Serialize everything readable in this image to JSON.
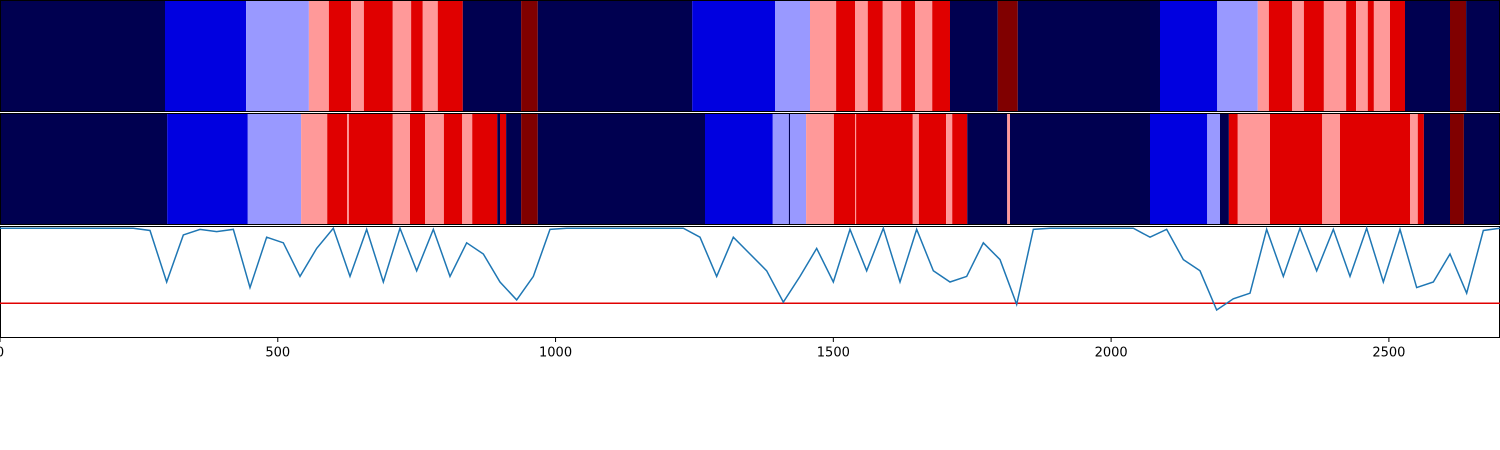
{
  "chart_data": {
    "type": "segmentation",
    "xlim": [
      0,
      2700
    ],
    "xticks": [
      0,
      500,
      1000,
      1500,
      2000,
      2500
    ],
    "bands": [
      {
        "edges": [
          0,
          297,
          443,
          556,
          592,
          632,
          655,
          707,
          740,
          761,
          788,
          833,
          938,
          968,
          1246,
          1395,
          1458,
          1505,
          1539,
          1562,
          1589,
          1622,
          1647,
          1678,
          1710,
          1796,
          1832,
          2088,
          2191,
          2264,
          2284,
          2326,
          2347,
          2383,
          2423,
          2441,
          2462,
          2473,
          2502,
          2529,
          2610,
          2639,
          2700
        ],
        "colors": [
          "#000050",
          "#0000e0",
          "#9999ff",
          "#ff9999",
          "#e00000",
          "#ff9999",
          "#e00000",
          "#ff9999",
          "#e00000",
          "#ff9999",
          "#e00000",
          "#000050",
          "#800000",
          "#000050",
          "#0000e0",
          "#9999ff",
          "#ff9999",
          "#e00000",
          "#ff9999",
          "#e00000",
          "#ff9999",
          "#e00000",
          "#ff9999",
          "#e00000",
          "#000050",
          "#800000",
          "#000050",
          "#0000e0",
          "#9999ff",
          "#ff9999",
          "#e00000",
          "#ff9999",
          "#e00000",
          "#ff9999",
          "#e00000",
          "#ff9999",
          "#e00000",
          "#ff9999",
          "#e00000",
          "#000050",
          "#800000",
          "#000050"
        ]
      },
      {
        "edges": [
          0,
          301,
          446,
          542,
          589,
          625,
          628,
          707,
          738,
          765,
          799,
          832,
          850,
          895,
          900,
          911,
          938,
          968,
          1269,
          1391,
          1420,
          1422,
          1451,
          1501,
          1539,
          1541,
          1643,
          1654,
          1703,
          1714,
          1741,
          1813,
          1818,
          2070,
          2173,
          2196,
          2212,
          2228,
          2286,
          2380,
          2412,
          2538,
          2552,
          2563,
          2610,
          2635,
          2700
        ],
        "colors": [
          "#000050",
          "#0000e0",
          "#9999ff",
          "#ff9999",
          "#e00000",
          "#ff9999",
          "#e00000",
          "#ff9999",
          "#e00000",
          "#ff9999",
          "#e00000",
          "#ff9999",
          "#e00000",
          "#000050",
          "#e00000",
          "#000050",
          "#800000",
          "#000050",
          "#0000e0",
          "#9999ff",
          "#000050",
          "#9999ff",
          "#ff9999",
          "#e00000",
          "#ff9999",
          "#e00000",
          "#ff9999",
          "#e00000",
          "#ff9999",
          "#e00000",
          "#000050",
          "#ff9999",
          "#000050",
          "#0000e0",
          "#9999ff",
          "#000050",
          "#e00000",
          "#ff9999",
          "#e00000",
          "#ff9999",
          "#e00000",
          "#ff9999",
          "#e00000",
          "#000050",
          "#800000",
          "#000050"
        ]
      }
    ],
    "line": {
      "color": "#1f77b4",
      "x": [
        0,
        30,
        60,
        90,
        120,
        150,
        180,
        210,
        240,
        270,
        300,
        330,
        360,
        390,
        420,
        450,
        480,
        510,
        540,
        570,
        600,
        630,
        660,
        690,
        720,
        750,
        780,
        810,
        840,
        870,
        900,
        930,
        960,
        990,
        1020,
        1050,
        1080,
        1110,
        1140,
        1170,
        1200,
        1230,
        1260,
        1290,
        1320,
        1350,
        1380,
        1410,
        1440,
        1470,
        1500,
        1530,
        1560,
        1590,
        1620,
        1650,
        1680,
        1710,
        1740,
        1770,
        1800,
        1830,
        1860,
        1890,
        1920,
        1950,
        1980,
        2010,
        2040,
        2070,
        2100,
        2130,
        2160,
        2190,
        2220,
        2250,
        2280,
        2310,
        2340,
        2370,
        2400,
        2430,
        2460,
        2490,
        2520,
        2550,
        2580,
        2610,
        2640,
        2670,
        2700
      ],
      "values": [
        0.98,
        0.98,
        0.98,
        0.98,
        0.98,
        0.98,
        0.98,
        0.98,
        0.98,
        0.96,
        0.5,
        0.92,
        0.97,
        0.95,
        0.97,
        0.45,
        0.9,
        0.85,
        0.55,
        0.8,
        0.98,
        0.55,
        0.97,
        0.5,
        0.98,
        0.6,
        0.97,
        0.55,
        0.85,
        0.75,
        0.5,
        0.34,
        0.55,
        0.97,
        0.98,
        0.98,
        0.98,
        0.98,
        0.98,
        0.98,
        0.98,
        0.98,
        0.9,
        0.55,
        0.9,
        0.75,
        0.6,
        0.32,
        0.55,
        0.8,
        0.5,
        0.97,
        0.6,
        0.98,
        0.5,
        0.97,
        0.6,
        0.5,
        0.55,
        0.85,
        0.7,
        0.3,
        0.97,
        0.98,
        0.98,
        0.98,
        0.98,
        0.98,
        0.98,
        0.9,
        0.97,
        0.7,
        0.6,
        0.25,
        0.35,
        0.4,
        0.97,
        0.55,
        0.98,
        0.6,
        0.97,
        0.55,
        0.98,
        0.5,
        0.97,
        0.45,
        0.5,
        0.75,
        0.4,
        0.96,
        0.98
      ]
    },
    "ylim": [
      0,
      1
    ],
    "threshold": 0.31,
    "threshold_color": "#e00000"
  }
}
